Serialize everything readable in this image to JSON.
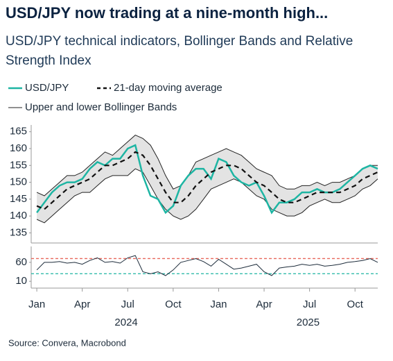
{
  "chart_data": [
    {
      "type": "line",
      "title": "USD/JPY now trading at a nine-month high...",
      "subtitle": [
        "USD/JPY technical indicators, Bollinger Bands and Relative",
        "Strength Index"
      ],
      "source": "Source: Convera, Macrobond",
      "x": [
        0,
        0.5,
        1,
        1.5,
        2,
        2.5,
        3,
        3.5,
        4,
        4.5,
        5,
        5.5,
        6,
        6.5,
        7,
        7.5,
        8,
        8.5,
        9,
        9.5,
        10,
        10.5,
        11,
        11.5,
        12,
        12.5,
        13,
        13.5,
        14,
        14.5,
        15,
        15.5,
        16,
        16.5,
        17,
        17.5,
        18,
        18.5,
        19,
        19.5,
        20,
        20.5,
        21,
        21.5,
        22,
        22.5
      ],
      "xlim": [
        -0.37,
        22.5
      ],
      "ylim": [
        132,
        167
      ],
      "yticks": [
        135,
        140,
        145,
        150,
        155,
        160,
        165
      ],
      "series": [
        {
          "name": "USD/JPY",
          "color": "#1db5a3",
          "style": "solid",
          "values": [
            141,
            144,
            147,
            149,
            150,
            150,
            151,
            154,
            156,
            155,
            157,
            157,
            160,
            161,
            152,
            146,
            145,
            141,
            143,
            149,
            152,
            154,
            154,
            151,
            157,
            156,
            152,
            150,
            149,
            150,
            146,
            141,
            144,
            144,
            145,
            147,
            147,
            148,
            147,
            147,
            148,
            150,
            152,
            154,
            155,
            154
          ]
        },
        {
          "name": "21-day moving average",
          "color": "#111111",
          "style": "dashed",
          "values": [
            143,
            142,
            144,
            146,
            148,
            149,
            150,
            151,
            153,
            155,
            155,
            156,
            157,
            159,
            158,
            155,
            151,
            147,
            144,
            144,
            146,
            149,
            151,
            153,
            154,
            155,
            155,
            154,
            152,
            150,
            149,
            147,
            145,
            144,
            144,
            145,
            146,
            147,
            147,
            147,
            147,
            148,
            149,
            151,
            152,
            153
          ]
        },
        {
          "name": "Upper and lower Bollinger Bands",
          "type": "band",
          "color": "#222222",
          "fill": "#e3e3e3",
          "upper": [
            147,
            146,
            148,
            150,
            152,
            152,
            153,
            155,
            157,
            159,
            158,
            160,
            162,
            164,
            163,
            161,
            157,
            152,
            148,
            149,
            152,
            156,
            157,
            158,
            159,
            160,
            159,
            158,
            156,
            154,
            153,
            152,
            149,
            148,
            148,
            149,
            149,
            150,
            149,
            150,
            150,
            151,
            152,
            154,
            155,
            155
          ],
          "lower": [
            139,
            138,
            140,
            142,
            144,
            146,
            147,
            147,
            149,
            151,
            152,
            152,
            152,
            154,
            153,
            149,
            145,
            142,
            140,
            139,
            140,
            142,
            145,
            148,
            149,
            150,
            151,
            150,
            148,
            146,
            145,
            142,
            141,
            140,
            140,
            141,
            143,
            144,
            145,
            144,
            144,
            145,
            146,
            148,
            149,
            151
          ]
        }
      ]
    },
    {
      "type": "line",
      "x": [
        0,
        0.5,
        1,
        1.5,
        2,
        2.5,
        3,
        3.5,
        4,
        4.5,
        5,
        5.5,
        6,
        6.5,
        7,
        7.5,
        8,
        8.5,
        9,
        9.5,
        10,
        10.5,
        11,
        11.5,
        12,
        12.5,
        13,
        13.5,
        14,
        14.5,
        15,
        15.5,
        16,
        16.5,
        17,
        17.5,
        18,
        18.5,
        19,
        19.5,
        20,
        20.5,
        21,
        21.5,
        22,
        22.5
      ],
      "xlim": [
        -0.37,
        22.5
      ],
      "xticks": [
        {
          "value": 0,
          "label": "Jan"
        },
        {
          "value": 3,
          "label": "Apr"
        },
        {
          "value": 6,
          "label": "Jul"
        },
        {
          "value": 9,
          "label": "Oct"
        },
        {
          "value": 12,
          "label": "Jan"
        },
        {
          "value": 15,
          "label": "Apr"
        },
        {
          "value": 18,
          "label": "Jul"
        },
        {
          "value": 21,
          "label": "Oct"
        }
      ],
      "year_labels": [
        {
          "value": 5.9,
          "label": "2024"
        },
        {
          "value": 17.9,
          "label": "2025"
        }
      ],
      "ylim": [
        -8,
        102
      ],
      "yticks": [
        10,
        60
      ],
      "levels": [
        {
          "value": 70,
          "color": "#e8665a"
        },
        {
          "value": 30,
          "color": "#1db5a3"
        }
      ],
      "series": [
        {
          "color": "#1c2b3a",
          "style": "thin",
          "values": [
            40,
            60,
            60,
            62,
            58,
            60,
            55,
            65,
            72,
            60,
            62,
            58,
            72,
            78,
            35,
            30,
            35,
            25,
            40,
            60,
            65,
            70,
            62,
            50,
            68,
            55,
            42,
            45,
            50,
            55,
            35,
            25,
            45,
            48,
            50,
            55,
            52,
            55,
            50,
            52,
            55,
            60,
            62,
            65,
            70,
            60
          ]
        }
      ]
    }
  ]
}
